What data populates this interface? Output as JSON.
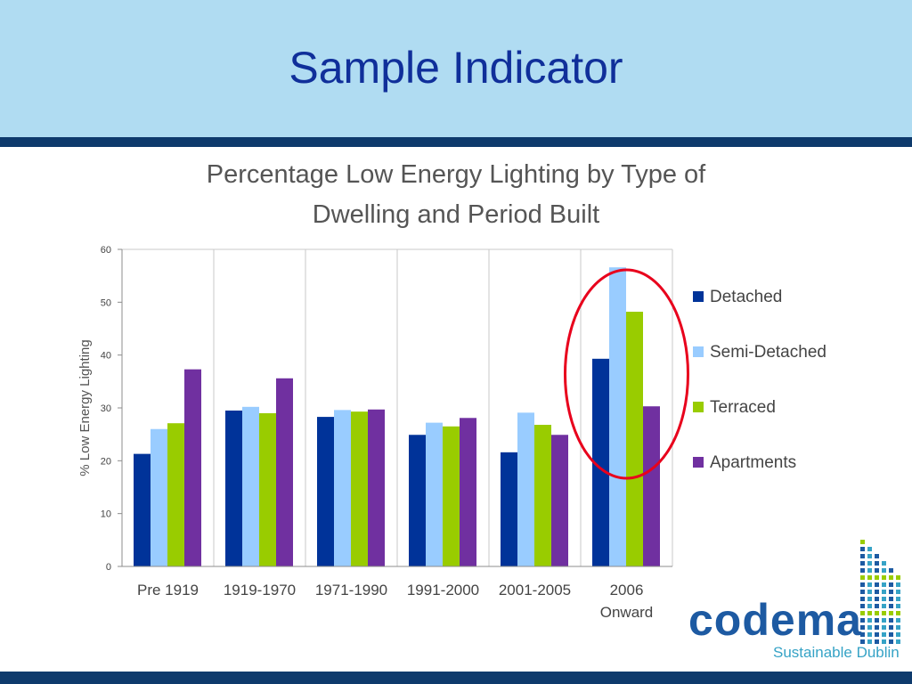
{
  "slide": {
    "title": "Sample Indicator"
  },
  "chart_data": {
    "type": "bar",
    "title": "Percentage Low Energy Lighting by Type of Dwelling and Period Built",
    "title_lines": [
      "Percentage Low Energy Lighting by Type of",
      "Dwelling and Period Built"
    ],
    "ylabel": "% Low Energy Lighting",
    "xlabel": "",
    "ylim": [
      0,
      60
    ],
    "yticks": [
      0,
      10,
      20,
      30,
      40,
      50,
      60
    ],
    "grid": "vertical",
    "legend_position": "right",
    "categories": [
      "Pre 1919",
      "1919-1970",
      "1971-1990",
      "1991-2000",
      "2001-2005",
      "2006 Onward"
    ],
    "category_lines": [
      [
        "Pre 1919"
      ],
      [
        "1919-1970"
      ],
      [
        "1971-1990"
      ],
      [
        "1991-2000"
      ],
      [
        "2001-2005"
      ],
      [
        "2006",
        "Onward"
      ]
    ],
    "series": [
      {
        "name": "Detached",
        "color": "#003399",
        "values": [
          21.3,
          29.5,
          28.3,
          24.9,
          21.6,
          39.3
        ]
      },
      {
        "name": "Semi-Detached",
        "color": "#99ccff",
        "values": [
          26.0,
          30.2,
          29.6,
          27.2,
          29.1,
          56.6
        ]
      },
      {
        "name": "Terraced",
        "color": "#99cc00",
        "values": [
          27.1,
          29.0,
          29.3,
          26.5,
          26.8,
          48.2
        ]
      },
      {
        "name": "Apartments",
        "color": "#7030a0",
        "values": [
          37.3,
          35.6,
          29.7,
          28.1,
          24.9,
          30.3
        ]
      }
    ],
    "highlight": {
      "category": "2006 Onward",
      "color": "#e8001c"
    }
  },
  "logo": {
    "name": "codema",
    "tagline": "Sustainable Dublin",
    "colors": [
      "#1d5aa2",
      "#36a3c6",
      "#99cc00"
    ]
  }
}
